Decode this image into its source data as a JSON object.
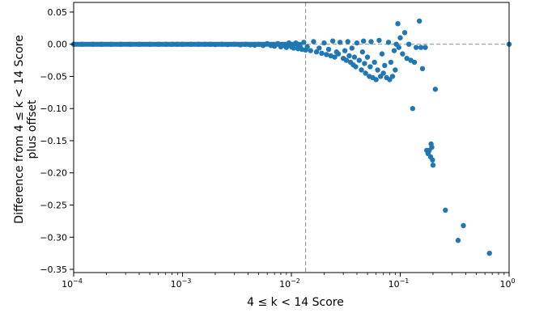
{
  "chart_data": {
    "type": "scatter",
    "xlabel": "4 ≤  k < 14 Score",
    "ylabel": [
      "Difference from 4 ≤ k < 14 Score",
      "plus offset"
    ],
    "x_scale": "log",
    "xlim": [
      0.0001,
      1
    ],
    "ylim": [
      -0.355,
      0.065
    ],
    "x_ticks": [
      {
        "value": 0.0001,
        "label": "10",
        "exp": "−4"
      },
      {
        "value": 0.001,
        "label": "10",
        "exp": "−3"
      },
      {
        "value": 0.01,
        "label": "10",
        "exp": "−2"
      },
      {
        "value": 0.1,
        "label": "10",
        "exp": "−1"
      },
      {
        "value": 1,
        "label": "10",
        "exp": "0"
      }
    ],
    "y_ticks": [
      {
        "value": 0.05,
        "label": "0.05"
      },
      {
        "value": 0.0,
        "label": "0.00"
      },
      {
        "value": -0.05,
        "label": "−0.05"
      },
      {
        "value": -0.1,
        "label": "−0.10"
      },
      {
        "value": -0.15,
        "label": "−0.15"
      },
      {
        "value": -0.2,
        "label": "−0.20"
      },
      {
        "value": -0.25,
        "label": "−0.25"
      },
      {
        "value": -0.3,
        "label": "−0.30"
      },
      {
        "value": -0.35,
        "label": "−0.35"
      }
    ],
    "reference_lines": {
      "vertical_x": 0.0135,
      "horizontal_y": 0.0
    },
    "grid": false,
    "colors": {
      "marker": "#1f77b4",
      "reference": "#999999"
    },
    "series": [
      {
        "points": [
          [
            0.0001,
            0.0
          ],
          [
            0.00012,
            0.0
          ],
          [
            0.00015,
            0.0
          ],
          [
            0.00018,
            0.0
          ],
          [
            0.00022,
            0.0
          ],
          [
            0.00027,
            0.0
          ],
          [
            0.00033,
            0.0
          ],
          [
            0.0004,
            0.0
          ],
          [
            0.0005,
            0.0
          ],
          [
            0.0006,
            0.0
          ],
          [
            0.0007,
            0.0
          ],
          [
            0.0008,
            0.0
          ],
          [
            0.0009,
            0.0
          ],
          [
            0.001,
            0.0
          ],
          [
            0.0012,
            0.0
          ],
          [
            0.0014,
            0.0
          ],
          [
            0.0016,
            0.0
          ],
          [
            0.0018,
            0.0
          ],
          [
            0.002,
            -0.0005
          ],
          [
            0.0023,
            0.0
          ],
          [
            0.0026,
            -0.0005
          ],
          [
            0.003,
            0.0
          ],
          [
            0.0034,
            -0.001
          ],
          [
            0.0038,
            0.0
          ],
          [
            0.0042,
            -0.001
          ],
          [
            0.0046,
            -0.0015
          ],
          [
            0.005,
            0.0
          ],
          [
            0.0055,
            -0.002
          ],
          [
            0.006,
            0.001
          ],
          [
            0.0065,
            -0.002
          ],
          [
            0.007,
            -0.003
          ],
          [
            0.0075,
            0.001
          ],
          [
            0.008,
            -0.004
          ],
          [
            0.0085,
            -0.002
          ],
          [
            0.009,
            -0.005
          ],
          [
            0.0095,
            0.002
          ],
          [
            0.01,
            -0.004
          ],
          [
            0.0105,
            -0.006
          ],
          [
            0.011,
            0.002
          ],
          [
            0.0115,
            -0.007
          ],
          [
            0.012,
            -0.003
          ],
          [
            0.0125,
            -0.008
          ],
          [
            0.013,
            0.003
          ],
          [
            0.0135,
            -0.009
          ],
          [
            0.014,
            -0.004
          ],
          [
            0.015,
            -0.01
          ],
          [
            0.016,
            0.004
          ],
          [
            0.017,
            -0.012
          ],
          [
            0.018,
            -0.006
          ],
          [
            0.019,
            -0.014
          ],
          [
            0.02,
            0.002
          ],
          [
            0.021,
            -0.016
          ],
          [
            0.022,
            -0.008
          ],
          [
            0.023,
            -0.018
          ],
          [
            0.024,
            0.005
          ],
          [
            0.025,
            -0.02
          ],
          [
            0.026,
            -0.012
          ],
          [
            0.027,
            -0.015
          ],
          [
            0.028,
            0.003
          ],
          [
            0.03,
            -0.022
          ],
          [
            0.031,
            -0.01
          ],
          [
            0.032,
            -0.025
          ],
          [
            0.033,
            0.004
          ],
          [
            0.034,
            -0.018
          ],
          [
            0.035,
            -0.028
          ],
          [
            0.036,
            -0.006
          ],
          [
            0.037,
            -0.032
          ],
          [
            0.038,
            -0.02
          ],
          [
            0.039,
            -0.035
          ],
          [
            0.04,
            0.002
          ],
          [
            0.042,
            -0.025
          ],
          [
            0.044,
            -0.04
          ],
          [
            0.045,
            -0.012
          ],
          [
            0.046,
            0.005
          ],
          [
            0.047,
            -0.03
          ],
          [
            0.048,
            -0.045
          ],
          [
            0.05,
            -0.02
          ],
          [
            0.052,
            -0.05
          ],
          [
            0.053,
            -0.035
          ],
          [
            0.054,
            0.004
          ],
          [
            0.056,
            -0.052
          ],
          [
            0.058,
            -0.028
          ],
          [
            0.06,
            -0.055
          ],
          [
            0.062,
            -0.04
          ],
          [
            0.064,
            0.006
          ],
          [
            0.066,
            -0.05
          ],
          [
            0.068,
            -0.015
          ],
          [
            0.07,
            -0.045
          ],
          [
            0.072,
            -0.033
          ],
          [
            0.075,
            -0.052
          ],
          [
            0.078,
            0.003
          ],
          [
            0.08,
            -0.055
          ],
          [
            0.082,
            -0.028
          ],
          [
            0.085,
            -0.05
          ],
          [
            0.088,
            -0.01
          ],
          [
            0.09,
            -0.04
          ],
          [
            0.092,
            0.0
          ],
          [
            0.095,
            0.032
          ],
          [
            0.097,
            -0.005
          ],
          [
            0.1,
            0.01
          ],
          [
            0.105,
            -0.015
          ],
          [
            0.11,
            0.018
          ],
          [
            0.115,
            -0.022
          ],
          [
            0.12,
            0.0
          ],
          [
            0.125,
            -0.025
          ],
          [
            0.13,
            -0.1
          ],
          [
            0.135,
            -0.028
          ],
          [
            0.14,
            -0.005
          ],
          [
            0.15,
            0.036
          ],
          [
            0.155,
            -0.005
          ],
          [
            0.16,
            -0.038
          ],
          [
            0.17,
            -0.005
          ],
          [
            0.175,
            -0.165
          ],
          [
            0.18,
            -0.17
          ],
          [
            0.185,
            -0.165
          ],
          [
            0.19,
            -0.175
          ],
          [
            0.192,
            -0.155
          ],
          [
            0.195,
            -0.16
          ],
          [
            0.198,
            -0.18
          ],
          [
            0.2,
            -0.188
          ],
          [
            0.21,
            -0.07
          ],
          [
            0.26,
            -0.258
          ],
          [
            0.34,
            -0.305
          ],
          [
            0.38,
            -0.282
          ],
          [
            0.66,
            -0.325
          ],
          [
            1.0,
            0.0
          ]
        ]
      }
    ]
  }
}
